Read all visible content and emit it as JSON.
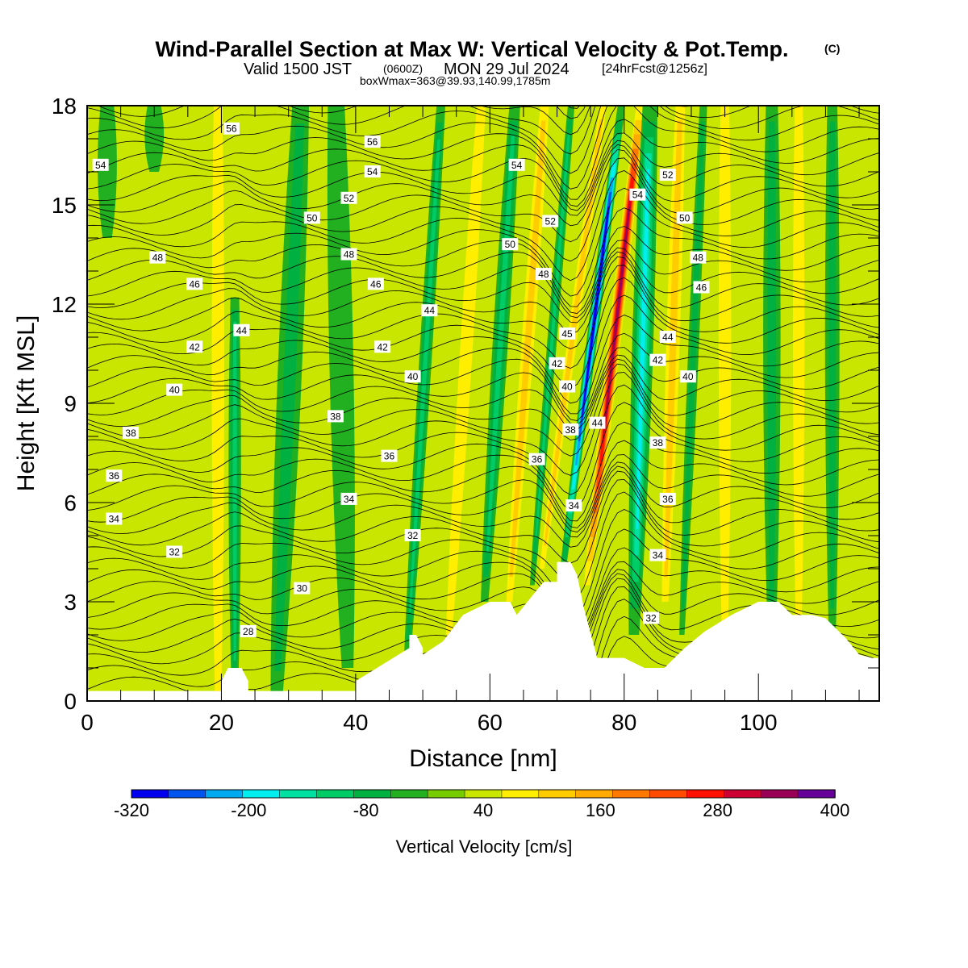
{
  "header": {
    "title": "Wind-Parallel Section at Max W: Vertical Velocity & Pot.Temp.",
    "title_mark": "(C)",
    "valid_main": "Valid 1500 JST",
    "valid_small": "(0600Z)",
    "valid_date": "MON 29 Jul 2024",
    "fcst_note": "[24hrFcst@1256z]",
    "box_note": "boxWmax=363@39.93,140.99,1785m"
  },
  "chart_data": {
    "type": "heatmap",
    "xlabel": "Distance [nm]",
    "ylabel": "Height [Kft MSL]",
    "xlim": [
      0,
      118
    ],
    "ylim": [
      0,
      18
    ],
    "xticks": [
      0,
      20,
      40,
      60,
      80,
      100
    ],
    "yticks": [
      0,
      3,
      6,
      9,
      12,
      15,
      18
    ],
    "colorbar": {
      "label": "Vertical Velocity [cm/s]",
      "tick_labels": [
        "-320",
        "-200",
        "-80",
        "40",
        "160",
        "280",
        "400"
      ],
      "tick_values": [
        -320,
        -200,
        -80,
        40,
        160,
        280,
        400
      ],
      "level_min": -320,
      "level_step": 40,
      "colors": [
        "#0000ee",
        "#0055ee",
        "#00aaf0",
        "#00eeee",
        "#00e0a0",
        "#00cc66",
        "#00b040",
        "#22b020",
        "#77cc00",
        "#c8e600",
        "#ffee00",
        "#ffcc00",
        "#ffaa00",
        "#ff7800",
        "#ff4a00",
        "#ff1000",
        "#cc0033",
        "#990055",
        "#660099"
      ]
    },
    "terrain": [
      [
        0,
        0.3
      ],
      [
        20,
        0.3
      ],
      [
        20,
        0.6
      ],
      [
        21,
        1
      ],
      [
        23,
        1
      ],
      [
        24,
        0.6
      ],
      [
        24,
        0.3
      ],
      [
        40,
        0.3
      ],
      [
        40,
        0.6
      ],
      [
        48,
        1.6
      ],
      [
        48,
        2
      ],
      [
        49,
        2
      ],
      [
        50,
        1.6
      ],
      [
        50,
        1.4
      ],
      [
        53,
        1.8
      ],
      [
        56,
        2.6
      ],
      [
        60,
        3
      ],
      [
        63,
        3
      ],
      [
        64,
        2.6
      ],
      [
        68,
        3.6
      ],
      [
        70,
        3.6
      ],
      [
        70,
        4.2
      ],
      [
        72,
        4.2
      ],
      [
        73,
        3.8
      ],
      [
        74,
        2.8
      ],
      [
        76,
        1.3
      ],
      [
        80,
        1.3
      ],
      [
        83,
        1
      ],
      [
        86,
        1
      ],
      [
        89,
        1.6
      ],
      [
        92,
        2.1
      ],
      [
        96,
        2.6
      ],
      [
        100,
        3
      ],
      [
        103,
        3
      ],
      [
        105,
        2.6
      ],
      [
        106,
        2.6
      ],
      [
        108,
        2.6
      ],
      [
        110,
        2.5
      ],
      [
        113,
        1.9
      ],
      [
        115,
        1.4
      ],
      [
        117,
        1.3
      ],
      [
        118,
        1.3
      ]
    ],
    "w_features": [
      {
        "x": 22,
        "wx": 1.3,
        "ybot": 0,
        "ytop": 12.2,
        "tilt": 0,
        "w": -110
      },
      {
        "x": 19.5,
        "wx": 1.3,
        "ybot": 0,
        "ytop": 18,
        "tilt": 0,
        "w": 90
      },
      {
        "x": 24.5,
        "wx": 1.1,
        "ybot": 0,
        "ytop": 14,
        "tilt": 0,
        "w": 70
      },
      {
        "x": 30,
        "wx": 2.5,
        "ybot": 0,
        "ytop": 18,
        "tilt": 0.2,
        "w": -40
      },
      {
        "x": 38,
        "wx": 2.5,
        "ybot": 1,
        "ytop": 18,
        "tilt": -0.1,
        "w": -35
      },
      {
        "x": 46,
        "wx": 1.5,
        "ybot": 1,
        "ytop": 18,
        "tilt": 0.2,
        "w": 70
      },
      {
        "x": 50,
        "wx": 1.3,
        "ybot": 1,
        "ytop": 18,
        "tilt": 0.3,
        "w": -90
      },
      {
        "x": 56,
        "wx": 1.3,
        "ybot": 2,
        "ytop": 18,
        "tilt": 0.3,
        "w": 100
      },
      {
        "x": 61,
        "wx": 1.6,
        "ybot": 3,
        "ytop": 18,
        "tilt": 0.3,
        "w": -80
      },
      {
        "x": 65,
        "wx": 1.3,
        "ybot": 3,
        "ytop": 18,
        "tilt": 0.35,
        "w": 120
      },
      {
        "x": 68.5,
        "wx": 1.0,
        "ybot": 3.5,
        "ytop": 18,
        "tilt": 0.4,
        "w": -80
      },
      {
        "x": 71,
        "wx": 1.0,
        "ybot": 4,
        "ytop": 18,
        "tilt": 0.65,
        "w": 150
      },
      {
        "x": 74,
        "wx": 1.1,
        "ybot": 3.5,
        "ytop": 18,
        "tilt": 0.62,
        "w": -330
      },
      {
        "x": 77.5,
        "wx": 1.3,
        "ybot": 3.5,
        "ytop": 18,
        "tilt": 0.55,
        "w": 365
      },
      {
        "x": 82.5,
        "wx": 2.2,
        "ybot": 2,
        "ytop": 18,
        "tilt": 0.15,
        "w": -170
      },
      {
        "x": 87,
        "wx": 1.4,
        "ybot": 3,
        "ytop": 18,
        "tilt": 0.15,
        "w": 150
      },
      {
        "x": 90,
        "wx": 1.1,
        "ybot": 2,
        "ytop": 18,
        "tilt": 0.2,
        "w": -70
      },
      {
        "x": 95,
        "wx": 1.3,
        "ybot": 2,
        "ytop": 18,
        "tilt": 0,
        "w": 80
      },
      {
        "x": 102,
        "wx": 1.8,
        "ybot": 2,
        "ytop": 18,
        "tilt": 0,
        "w": -60
      },
      {
        "x": 106,
        "wx": 1.2,
        "ybot": 2,
        "ytop": 18,
        "tilt": 0,
        "w": 80
      },
      {
        "x": 111,
        "wx": 1.5,
        "ybot": 2,
        "ytop": 18,
        "tilt": 0,
        "w": -50
      },
      {
        "x": 3,
        "wx": 2.0,
        "ybot": 14,
        "ytop": 18,
        "tilt": 0,
        "w": -30
      },
      {
        "x": 10,
        "wx": 2.0,
        "ybot": 16,
        "ytop": 18,
        "tilt": 0,
        "w": -30
      }
    ],
    "contour_label_values": [
      {
        "text": "56",
        "x": 21.5,
        "y": 17.3
      },
      {
        "text": "56",
        "x": 42.5,
        "y": 16.9
      },
      {
        "text": "54",
        "x": 2,
        "y": 16.2
      },
      {
        "text": "54",
        "x": 42.5,
        "y": 16.0
      },
      {
        "text": "54",
        "x": 64,
        "y": 16.2
      },
      {
        "text": "54",
        "x": 82,
        "y": 15.3
      },
      {
        "text": "52",
        "x": 86.5,
        "y": 15.9
      },
      {
        "text": "52",
        "x": 39,
        "y": 15.2
      },
      {
        "text": "52",
        "x": 69,
        "y": 14.5
      },
      {
        "text": "50",
        "x": 33.5,
        "y": 14.6
      },
      {
        "text": "50",
        "x": 89,
        "y": 14.6
      },
      {
        "text": "50",
        "x": 63,
        "y": 13.8
      },
      {
        "text": "48",
        "x": 10.5,
        "y": 13.4
      },
      {
        "text": "48",
        "x": 39,
        "y": 13.5
      },
      {
        "text": "48",
        "x": 91,
        "y": 13.4
      },
      {
        "text": "48",
        "x": 68,
        "y": 12.9
      },
      {
        "text": "46",
        "x": 16,
        "y": 12.6
      },
      {
        "text": "46",
        "x": 43,
        "y": 12.6
      },
      {
        "text": "46",
        "x": 91.5,
        "y": 12.5
      },
      {
        "text": "44",
        "x": 51,
        "y": 11.8
      },
      {
        "text": "44",
        "x": 23,
        "y": 11.2
      },
      {
        "text": "44",
        "x": 86.5,
        "y": 11.0
      },
      {
        "text": "44",
        "x": 76,
        "y": 8.4
      },
      {
        "text": "45",
        "x": 71.5,
        "y": 11.1
      },
      {
        "text": "42",
        "x": 16,
        "y": 10.7
      },
      {
        "text": "42",
        "x": 44,
        "y": 10.7
      },
      {
        "text": "42",
        "x": 85,
        "y": 10.3
      },
      {
        "text": "42",
        "x": 70,
        "y": 10.2
      },
      {
        "text": "40",
        "x": 13,
        "y": 9.4
      },
      {
        "text": "40",
        "x": 48.5,
        "y": 9.8
      },
      {
        "text": "40",
        "x": 89.5,
        "y": 9.8
      },
      {
        "text": "40",
        "x": 71.5,
        "y": 9.5
      },
      {
        "text": "38",
        "x": 6.5,
        "y": 8.1
      },
      {
        "text": "38",
        "x": 37,
        "y": 8.6
      },
      {
        "text": "38",
        "x": 72,
        "y": 8.2
      },
      {
        "text": "38",
        "x": 85,
        "y": 7.8
      },
      {
        "text": "36",
        "x": 4,
        "y": 6.8
      },
      {
        "text": "36",
        "x": 45,
        "y": 7.4
      },
      {
        "text": "36",
        "x": 67,
        "y": 7.3
      },
      {
        "text": "36",
        "x": 86.5,
        "y": 6.1
      },
      {
        "text": "34",
        "x": 4,
        "y": 5.5
      },
      {
        "text": "34",
        "x": 39,
        "y": 6.1
      },
      {
        "text": "34",
        "x": 72.5,
        "y": 5.9
      },
      {
        "text": "34",
        "x": 85,
        "y": 4.4
      },
      {
        "text": "32",
        "x": 13,
        "y": 4.5
      },
      {
        "text": "32",
        "x": 48.5,
        "y": 5.0
      },
      {
        "text": "32",
        "x": 84,
        "y": 2.5
      },
      {
        "text": "30",
        "x": 32,
        "y": 3.4
      },
      {
        "text": "28",
        "x": 24,
        "y": 2.1
      }
    ]
  }
}
